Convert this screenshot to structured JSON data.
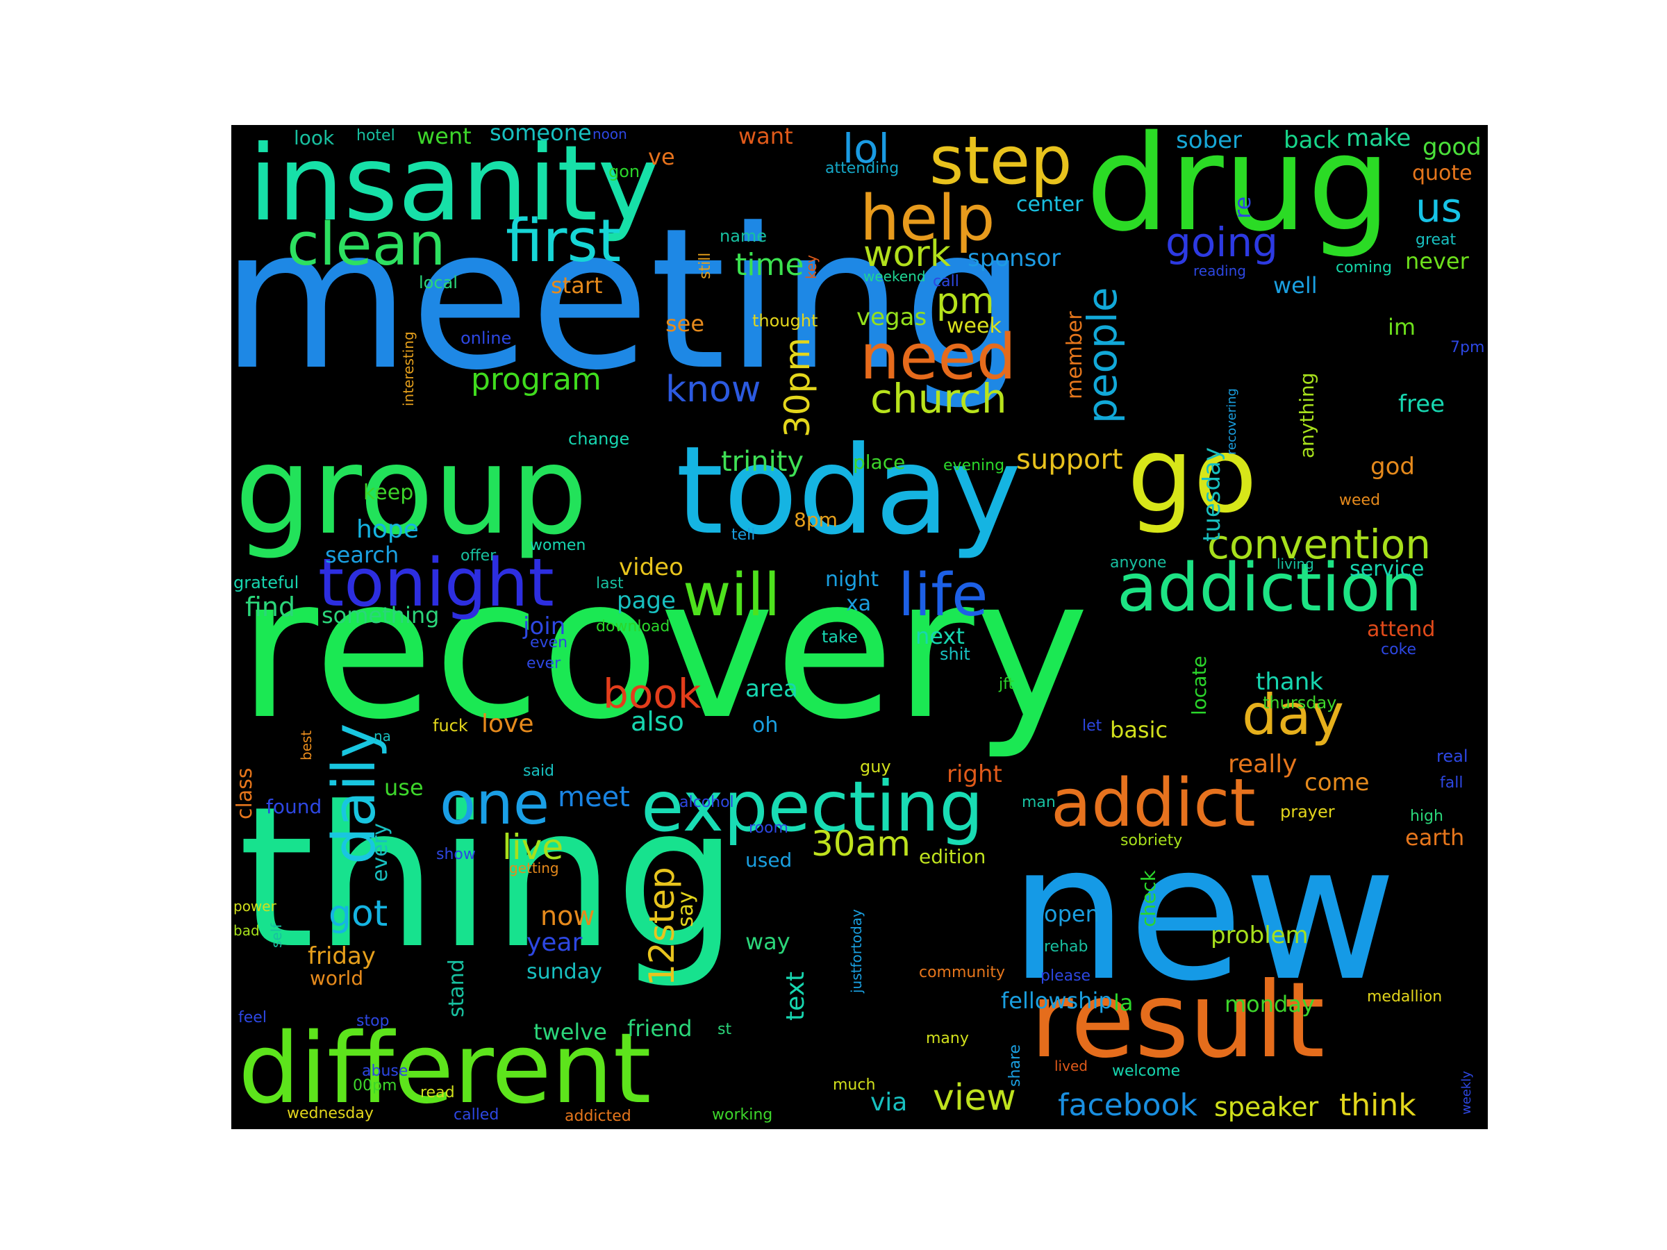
{
  "background": "#000000",
  "words": [
    {
      "text": "meeting",
      "color": "#1e88e5"
    },
    {
      "text": "recovery",
      "color": "#1be853"
    },
    {
      "text": "thing",
      "color": "#17e28e"
    },
    {
      "text": "new",
      "color": "#159ae6"
    },
    {
      "text": "insanity",
      "color": "#17e0a8"
    },
    {
      "text": "drug",
      "color": "#2bdb25"
    },
    {
      "text": "group",
      "color": "#22e25a"
    },
    {
      "text": "today",
      "color": "#15b4e2"
    },
    {
      "text": "go",
      "color": "#d7e619"
    },
    {
      "text": "result",
      "color": "#e56d1c"
    },
    {
      "text": "different",
      "color": "#5de41c"
    },
    {
      "text": "expecting",
      "color": "#19dcb4"
    },
    {
      "text": "addiction",
      "color": "#1de384"
    },
    {
      "text": "tonight",
      "color": "#2d2ee0"
    },
    {
      "text": "addict",
      "color": "#e6721e"
    },
    {
      "text": "step",
      "color": "#e8c21d"
    },
    {
      "text": "help",
      "color": "#e89b1d"
    },
    {
      "text": "need",
      "color": "#e66b1c"
    },
    {
      "text": "clean",
      "color": "#2de060"
    },
    {
      "text": "first",
      "color": "#17d6d6"
    },
    {
      "text": "will",
      "color": "#4ee21d"
    },
    {
      "text": "life",
      "color": "#1d60e6"
    },
    {
      "text": "one",
      "color": "#1a9fe6"
    },
    {
      "text": "daily",
      "color": "#19c6e0"
    },
    {
      "text": "day",
      "color": "#e6b01c"
    },
    {
      "text": "convention",
      "color": "#a8e01c"
    },
    {
      "text": "church",
      "color": "#b8e31c"
    },
    {
      "text": "people",
      "color": "#12a9d9"
    },
    {
      "text": "book",
      "color": "#e33d1b"
    },
    {
      "text": "us",
      "color": "#17c3e6"
    },
    {
      "text": "lol",
      "color": "#1a9be3"
    },
    {
      "text": "going",
      "color": "#2d3ae2"
    },
    {
      "text": "work",
      "color": "#b2e01c"
    },
    {
      "text": "pm",
      "color": "#b6e21c"
    },
    {
      "text": "know",
      "color": "#2c5ae0"
    },
    {
      "text": "program",
      "color": "#40dc1e"
    },
    {
      "text": "30pm",
      "color": "#e3d61c"
    },
    {
      "text": "time",
      "color": "#3be14f"
    },
    {
      "text": "30am",
      "color": "#bfe21e"
    },
    {
      "text": "got",
      "color": "#15b4e2"
    },
    {
      "text": "live",
      "color": "#a7e01c"
    },
    {
      "text": "meet",
      "color": "#1a84e2"
    },
    {
      "text": "12step",
      "color": "#e8c41d"
    },
    {
      "text": "facebook",
      "color": "#1a8fe0"
    },
    {
      "text": "view",
      "color": "#bfe21e"
    },
    {
      "text": "think",
      "color": "#e3d61c"
    },
    {
      "text": "speaker",
      "color": "#d1e01c"
    },
    {
      "text": "trinity",
      "color": "#3fe055"
    },
    {
      "text": "support",
      "color": "#e8c21d"
    },
    {
      "text": "tuesday",
      "color": "#18c0c0"
    },
    {
      "text": "sponsor",
      "color": "#1d9be3"
    },
    {
      "text": "vegas",
      "color": "#94e01c"
    },
    {
      "text": "week",
      "color": "#d9e01c"
    },
    {
      "text": "member",
      "color": "#e6761c"
    },
    {
      "text": "sober",
      "color": "#17a7d6"
    },
    {
      "text": "back",
      "color": "#17d68a"
    },
    {
      "text": "make",
      "color": "#1fd694"
    },
    {
      "text": "good",
      "color": "#4be03a"
    },
    {
      "text": "quote",
      "color": "#e6761c"
    },
    {
      "text": "never",
      "color": "#6de01c"
    },
    {
      "text": "well",
      "color": "#1a9fe0"
    },
    {
      "text": "re",
      "color": "#2d47e2"
    },
    {
      "text": "center",
      "color": "#19c0e0"
    },
    {
      "text": "want",
      "color": "#e05a1a"
    },
    {
      "text": "ve",
      "color": "#e6721c"
    },
    {
      "text": "went",
      "color": "#3dd62b"
    },
    {
      "text": "someone",
      "color": "#18c0c0"
    },
    {
      "text": "look",
      "color": "#18c0a0"
    },
    {
      "text": "hotel",
      "color": "#18c0a0"
    },
    {
      "text": "noon",
      "color": "#2d47e2"
    },
    {
      "text": "attending",
      "color": "#15a7c7"
    },
    {
      "text": "gon",
      "color": "#2bd62b"
    },
    {
      "text": "name",
      "color": "#18c0a0"
    },
    {
      "text": "still",
      "color": "#e6a01c"
    },
    {
      "text": "key",
      "color": "#e05a1a"
    },
    {
      "text": "start",
      "color": "#e68a1c"
    },
    {
      "text": "local",
      "color": "#2bd67a"
    },
    {
      "text": "interesting",
      "color": "#e6a01c"
    },
    {
      "text": "online",
      "color": "#2d47e2"
    },
    {
      "text": "see",
      "color": "#e68a1c"
    },
    {
      "text": "thought",
      "color": "#e3d61c"
    },
    {
      "text": "weekend",
      "color": "#1fd694"
    },
    {
      "text": "call",
      "color": "#2d47e2"
    },
    {
      "text": "reading",
      "color": "#2d47e2"
    },
    {
      "text": "great",
      "color": "#18c0c0"
    },
    {
      "text": "coming",
      "color": "#15d6a8"
    },
    {
      "text": "im",
      "color": "#6de01c"
    },
    {
      "text": "7pm",
      "color": "#2d47e2"
    },
    {
      "text": "recovering",
      "color": "#1a9fe0"
    },
    {
      "text": "anything",
      "color": "#a7e01c"
    },
    {
      "text": "free",
      "color": "#17d6b0"
    },
    {
      "text": "god",
      "color": "#e68a1c"
    },
    {
      "text": "weed",
      "color": "#e68a1c"
    },
    {
      "text": "change",
      "color": "#17d6b0"
    },
    {
      "text": "place",
      "color": "#3dd62b"
    },
    {
      "text": "evening",
      "color": "#2bd62b"
    },
    {
      "text": "keep",
      "color": "#3dd62b"
    },
    {
      "text": "hope",
      "color": "#15b4e2"
    },
    {
      "text": "search",
      "color": "#1a9fe0"
    },
    {
      "text": "offer",
      "color": "#18c0a0"
    },
    {
      "text": "women",
      "color": "#17d6b0"
    },
    {
      "text": "video",
      "color": "#e8c41d"
    },
    {
      "text": "8pm",
      "color": "#e6a01c"
    },
    {
      "text": "tell",
      "color": "#1a9fe0"
    },
    {
      "text": "anyone",
      "color": "#18c0a0"
    },
    {
      "text": "living",
      "color": "#18c0a0"
    },
    {
      "text": "service",
      "color": "#17d6b0"
    },
    {
      "text": "grateful",
      "color": "#17d6b0"
    },
    {
      "text": "last",
      "color": "#18c0a0"
    },
    {
      "text": "find",
      "color": "#2bd67a"
    },
    {
      "text": "something",
      "color": "#2bd67a"
    },
    {
      "text": "page",
      "color": "#18c0c0"
    },
    {
      "text": "night",
      "color": "#1a9fe0"
    },
    {
      "text": "xa",
      "color": "#1a9fe0"
    },
    {
      "text": "join",
      "color": "#2d47e2"
    },
    {
      "text": "download",
      "color": "#2bd62b"
    },
    {
      "text": "even",
      "color": "#2d47e2"
    },
    {
      "text": "ever",
      "color": "#2d47e2"
    },
    {
      "text": "take",
      "color": "#17d6b0"
    },
    {
      "text": "next",
      "color": "#17d6b0"
    },
    {
      "text": "shit",
      "color": "#18c0c0"
    },
    {
      "text": "attend",
      "color": "#e04a1a"
    },
    {
      "text": "coke",
      "color": "#2d47e2"
    },
    {
      "text": "locate",
      "color": "#2bd62b"
    },
    {
      "text": "thank",
      "color": "#17d6b0"
    },
    {
      "text": "thursday",
      "color": "#3dd62b"
    },
    {
      "text": "jft",
      "color": "#2bd62b"
    },
    {
      "text": "area",
      "color": "#17d6b0"
    },
    {
      "text": "also",
      "color": "#17d6b0"
    },
    {
      "text": "oh",
      "color": "#1a9fe0"
    },
    {
      "text": "love",
      "color": "#e68a1c"
    },
    {
      "text": "fuck",
      "color": "#e3d61c"
    },
    {
      "text": "na",
      "color": "#18c0c0"
    },
    {
      "text": "let",
      "color": "#2d47e2"
    },
    {
      "text": "basic",
      "color": "#d1e01c"
    },
    {
      "text": "really",
      "color": "#e6761c"
    },
    {
      "text": "real",
      "color": "#2d47e2"
    },
    {
      "text": "best",
      "color": "#e68a1c"
    },
    {
      "text": "said",
      "color": "#18c0c0"
    },
    {
      "text": "guy",
      "color": "#d1e01c"
    },
    {
      "text": "right",
      "color": "#e05a1a"
    },
    {
      "text": "come",
      "color": "#e68a1c"
    },
    {
      "text": "fall",
      "color": "#2d47e2"
    },
    {
      "text": "class",
      "color": "#e6761c"
    },
    {
      "text": "use",
      "color": "#3dd62b"
    },
    {
      "text": "found",
      "color": "#2d47e2"
    },
    {
      "text": "alcohol",
      "color": "#2d47e2"
    },
    {
      "text": "man",
      "color": "#18c0a0"
    },
    {
      "text": "prayer",
      "color": "#e3d61c"
    },
    {
      "text": "high",
      "color": "#2bd67a"
    },
    {
      "text": "every",
      "color": "#18c0c0"
    },
    {
      "text": "room",
      "color": "#2d47e2"
    },
    {
      "text": "sobriety",
      "color": "#a7e01c"
    },
    {
      "text": "earth",
      "color": "#e6761c"
    },
    {
      "text": "show",
      "color": "#2d47e2"
    },
    {
      "text": "getting",
      "color": "#e68a1c"
    },
    {
      "text": "used",
      "color": "#1a9fe0"
    },
    {
      "text": "edition",
      "color": "#bfe21e"
    },
    {
      "text": "power",
      "color": "#d1e01c"
    },
    {
      "text": "bad",
      "color": "#a7e01c"
    },
    {
      "text": "self",
      "color": "#18c0a0"
    },
    {
      "text": "now",
      "color": "#e68a1c"
    },
    {
      "text": "say",
      "color": "#e3d61c"
    },
    {
      "text": "check",
      "color": "#2bd62b"
    },
    {
      "text": "open",
      "color": "#1a9fe0"
    },
    {
      "text": "rehab",
      "color": "#18c0a0"
    },
    {
      "text": "problem",
      "color": "#a7e01c"
    },
    {
      "text": "year",
      "color": "#2d47e2"
    },
    {
      "text": "sunday",
      "color": "#18c0c0"
    },
    {
      "text": "friday",
      "color": "#e6a01c"
    },
    {
      "text": "world",
      "color": "#e68a1c"
    },
    {
      "text": "stand",
      "color": "#18c0a0"
    },
    {
      "text": "way",
      "color": "#2bd67a"
    },
    {
      "text": "text",
      "color": "#17d6b0"
    },
    {
      "text": "justfortoday",
      "color": "#1a9fe0"
    },
    {
      "text": "community",
      "color": "#e6761c"
    },
    {
      "text": "please",
      "color": "#2d47e2"
    },
    {
      "text": "fellowship",
      "color": "#1a9fe0"
    },
    {
      "text": "la",
      "color": "#2bd62b"
    },
    {
      "text": "monday",
      "color": "#3dd62b"
    },
    {
      "text": "medallion",
      "color": "#e3d61c"
    },
    {
      "text": "feel",
      "color": "#2d47e2"
    },
    {
      "text": "stop",
      "color": "#2d47e2"
    },
    {
      "text": "twelve",
      "color": "#2bd67a"
    },
    {
      "text": "friend",
      "color": "#2bd67a"
    },
    {
      "text": "st",
      "color": "#2bd67a"
    },
    {
      "text": "many",
      "color": "#d1e01c"
    },
    {
      "text": "share",
      "color": "#1a9fe0"
    },
    {
      "text": "lived",
      "color": "#e05a1a"
    },
    {
      "text": "welcome",
      "color": "#17d6b0"
    },
    {
      "text": "weekly",
      "color": "#2d47e2"
    },
    {
      "text": "abuse",
      "color": "#2d47e2"
    },
    {
      "text": "00pm",
      "color": "#3dd62b"
    },
    {
      "text": "read",
      "color": "#d1e01c"
    },
    {
      "text": "much",
      "color": "#d1e01c"
    },
    {
      "text": "via",
      "color": "#18c0c0"
    },
    {
      "text": "wednesday",
      "color": "#e3d61c"
    },
    {
      "text": "called",
      "color": "#2d47e2"
    },
    {
      "text": "addicted",
      "color": "#e6761c"
    },
    {
      "text": "working",
      "color": "#3dd62b"
    }
  ]
}
